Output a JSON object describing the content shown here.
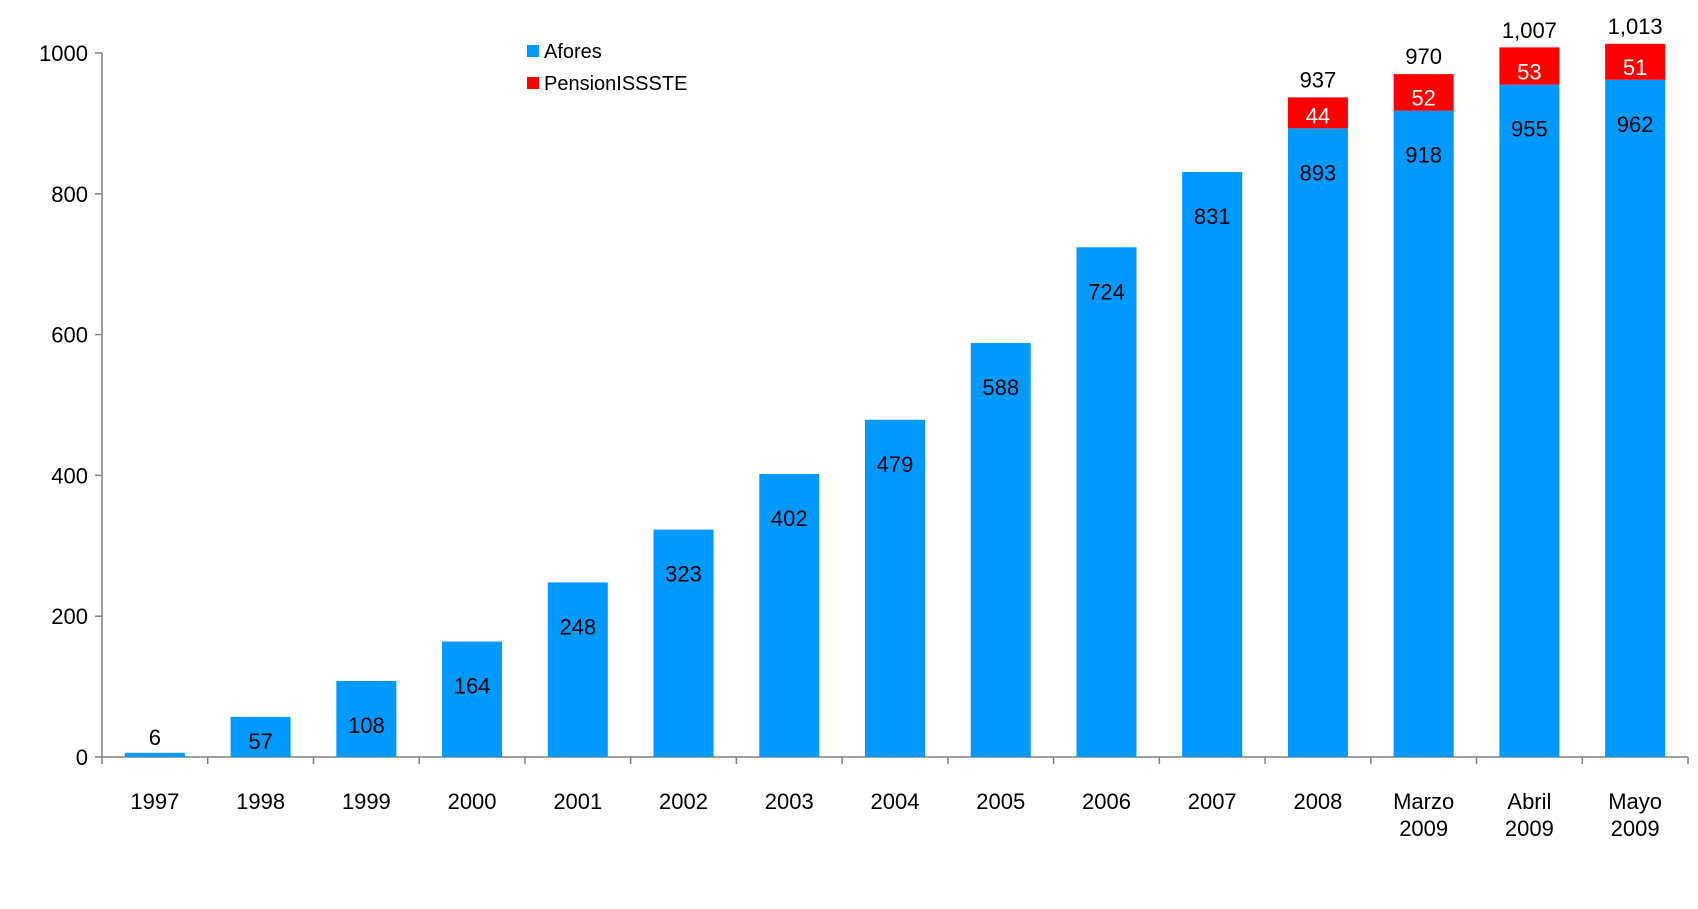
{
  "chart_data": {
    "type": "bar",
    "stacked": true,
    "title": "",
    "xlabel": "",
    "ylabel": "",
    "ylim": [
      0,
      1000
    ],
    "yticks": [
      0,
      200,
      400,
      600,
      800,
      1000
    ],
    "grid": false,
    "legend_position": "top-center",
    "categories": [
      [
        "1997"
      ],
      [
        "1998"
      ],
      [
        "1999"
      ],
      [
        "2000"
      ],
      [
        "2001"
      ],
      [
        "2002"
      ],
      [
        "2003"
      ],
      [
        "2004"
      ],
      [
        "2005"
      ],
      [
        "2006"
      ],
      [
        "2007"
      ],
      [
        "2008"
      ],
      [
        "Marzo",
        "2009"
      ],
      [
        "Abril",
        "2009"
      ],
      [
        "Mayo",
        "2009"
      ]
    ],
    "series": [
      {
        "name": "Afores",
        "color": "#0099ff",
        "values": [
          6,
          57,
          108,
          164,
          248,
          323,
          402,
          479,
          588,
          724,
          831,
          893,
          918,
          955,
          962
        ],
        "labels": [
          "6",
          "57",
          "108",
          "164",
          "248",
          "323",
          "402",
          "479",
          "588",
          "724",
          "831",
          "893",
          "918",
          "955",
          "962"
        ]
      },
      {
        "name": "PensionISSSTE",
        "color": "#ff0000",
        "values": [
          null,
          null,
          null,
          null,
          null,
          null,
          null,
          null,
          null,
          null,
          null,
          44,
          52,
          53,
          51
        ],
        "labels": [
          null,
          null,
          null,
          null,
          null,
          null,
          null,
          null,
          null,
          null,
          null,
          "44",
          "52",
          "53",
          "51"
        ]
      }
    ],
    "totals": [
      null,
      null,
      null,
      null,
      null,
      null,
      null,
      null,
      null,
      null,
      null,
      937,
      970,
      1007,
      1013
    ],
    "total_labels": [
      null,
      null,
      null,
      null,
      null,
      null,
      null,
      null,
      null,
      null,
      null,
      "937",
      "970",
      "1,007",
      "1,013"
    ]
  }
}
